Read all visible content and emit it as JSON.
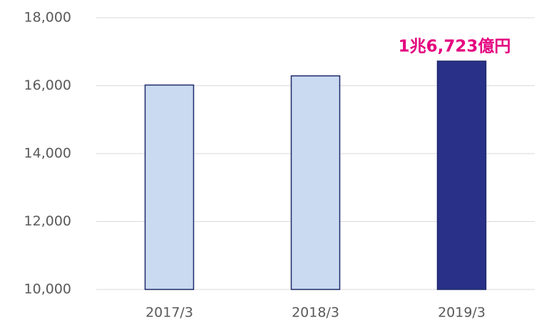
{
  "chart_data": {
    "type": "bar",
    "categories": [
      "2017/3",
      "2018/3",
      "2019/3"
    ],
    "values": [
      16020,
      16290,
      16723
    ],
    "value_labels": [
      null,
      null,
      "1兆6,723億円"
    ],
    "value_label_color": "#e4007f",
    "colors": [
      "#c9daf1",
      "#c9daf1",
      "#283087"
    ],
    "edgecolor": "#1f2a6b",
    "ylim": [
      10000,
      18000
    ],
    "yticks": [
      {
        "value": 10000,
        "label": "10,000"
      },
      {
        "value": 12000,
        "label": "12,000"
      },
      {
        "value": 14000,
        "label": "14,000"
      },
      {
        "value": 16000,
        "label": "16,000"
      },
      {
        "value": 18000,
        "label": "18,000"
      }
    ],
    "grid": true
  }
}
